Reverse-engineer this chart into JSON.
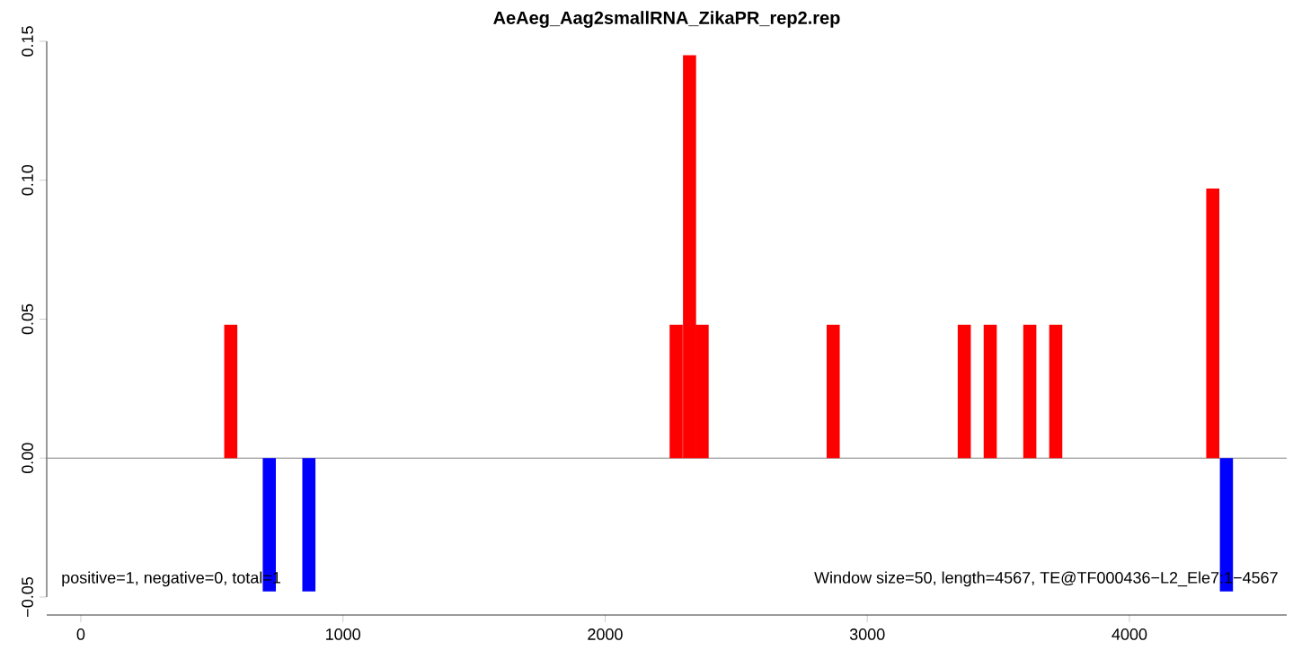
{
  "chart_data": {
    "type": "bar",
    "title": "AeAeg_Aag2smallRNA_ZikaPR_rep2.rep",
    "x": [
      572,
      719,
      870,
      2271,
      2322,
      2370,
      2870,
      3370,
      3469,
      3620,
      3719,
      4318,
      4370
    ],
    "values": [
      0.048,
      -0.048,
      -0.048,
      0.048,
      0.145,
      0.048,
      0.048,
      0.048,
      0.048,
      0.048,
      0.048,
      0.097,
      -0.048
    ],
    "colors": [
      "#ff0000",
      "#0000ff",
      "#0000ff",
      "#ff0000",
      "#ff0000",
      "#ff0000",
      "#ff0000",
      "#ff0000",
      "#ff0000",
      "#ff0000",
      "#ff0000",
      "#ff0000",
      "#0000ff"
    ],
    "xlim": [
      -130,
      4600
    ],
    "ylim": [
      -0.05,
      0.15
    ],
    "xticks": [
      0,
      1000,
      2000,
      3000,
      4000
    ],
    "yticks": [
      {
        "value": -0.05,
        "label": "−0.05"
      },
      {
        "value": 0.0,
        "label": "0.00"
      },
      {
        "value": 0.05,
        "label": "0.05"
      },
      {
        "value": 0.1,
        "label": "0.10"
      },
      {
        "value": 0.15,
        "label": "0.15"
      }
    ],
    "ref_lines": [
      {
        "axis": "y",
        "value": 0,
        "color": "#808080"
      }
    ],
    "annotations": [
      "positive=1, negative=0, total=1",
      "Window size=50, length=4567, TE@TF000436−L2_Ele7:1−4567"
    ],
    "grid": false
  }
}
